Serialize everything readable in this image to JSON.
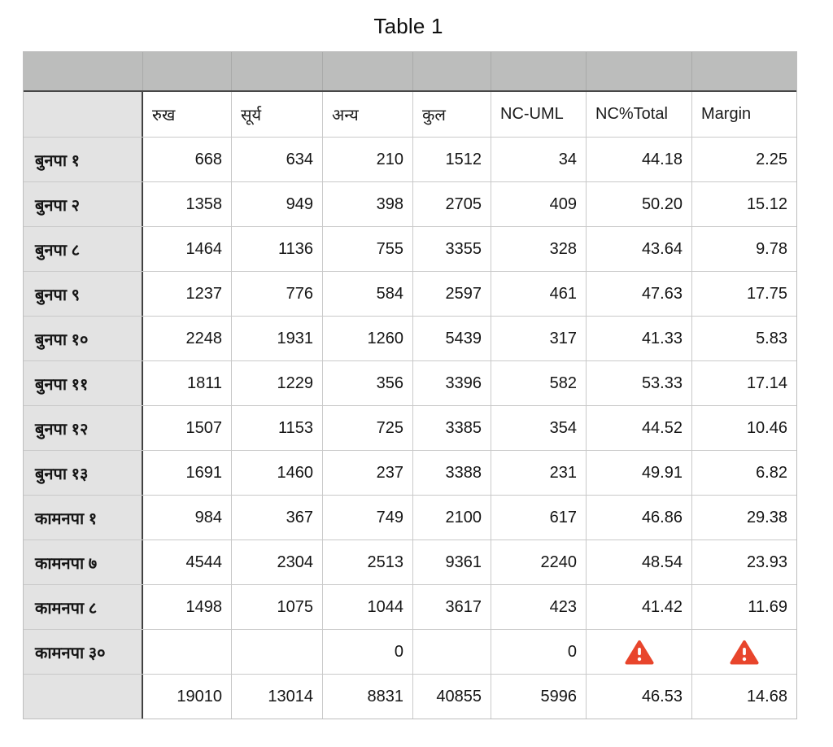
{
  "title": "Table 1",
  "colors": {
    "band_background": "#bcbdbc",
    "label_column_background": "#e3e3e3",
    "grid_border": "#c9c9c9",
    "dark_border": "#474747",
    "warning_red": "#e8452c",
    "text": "#151515"
  },
  "icons": {
    "warning": "warning-triangle-icon"
  },
  "table": {
    "column_headers": [
      "",
      "रुख",
      "सूर्य",
      "अन्य",
      "कुल",
      "NC-UML",
      "NC%Total",
      "Margin"
    ],
    "rows": [
      {
        "label": "बुनपा १",
        "values": [
          "668",
          "634",
          "210",
          "1512",
          "34",
          "44.18",
          "2.25"
        ]
      },
      {
        "label": "बुनपा २",
        "values": [
          "1358",
          "949",
          "398",
          "2705",
          "409",
          "50.20",
          "15.12"
        ]
      },
      {
        "label": "बुनपा ८",
        "values": [
          "1464",
          "1136",
          "755",
          "3355",
          "328",
          "43.64",
          "9.78"
        ]
      },
      {
        "label": "बुनपा ९",
        "values": [
          "1237",
          "776",
          "584",
          "2597",
          "461",
          "47.63",
          "17.75"
        ]
      },
      {
        "label": "बुनपा १०",
        "values": [
          "2248",
          "1931",
          "1260",
          "5439",
          "317",
          "41.33",
          "5.83"
        ]
      },
      {
        "label": "बुनपा ११",
        "values": [
          "1811",
          "1229",
          "356",
          "3396",
          "582",
          "53.33",
          "17.14"
        ]
      },
      {
        "label": "बुनपा १२",
        "values": [
          "1507",
          "1153",
          "725",
          "3385",
          "354",
          "44.52",
          "10.46"
        ]
      },
      {
        "label": "बुनपा १३",
        "values": [
          "1691",
          "1460",
          "237",
          "3388",
          "231",
          "49.91",
          "6.82"
        ]
      },
      {
        "label": "कामनपा १",
        "values": [
          "984",
          "367",
          "749",
          "2100",
          "617",
          "46.86",
          "29.38"
        ]
      },
      {
        "label": "कामनपा ७",
        "values": [
          "4544",
          "2304",
          "2513",
          "9361",
          "2240",
          "48.54",
          "23.93"
        ]
      },
      {
        "label": "कामनपा ८",
        "values": [
          "1498",
          "1075",
          "1044",
          "3617",
          "423",
          "41.42",
          "11.69"
        ]
      },
      {
        "label": "कामनपा ३०",
        "values": [
          "",
          "",
          "0",
          "",
          "0",
          "warning",
          "warning"
        ]
      }
    ],
    "totals_row": {
      "label": "",
      "values": [
        "19010",
        "13014",
        "8831",
        "40855",
        "5996",
        "46.53",
        "14.68"
      ]
    }
  },
  "chart_data": {
    "type": "table",
    "title": "Table 1",
    "columns": [
      "रुख",
      "सूर्य",
      "अन्य",
      "कुल",
      "NC-UML",
      "NC%Total",
      "Margin"
    ],
    "row_labels": [
      "बुनपा १",
      "बुनपा २",
      "बुनपा ८",
      "बुनपा ९",
      "बुनपा १०",
      "बुनपा ११",
      "बुनपा १२",
      "बुनपा १३",
      "कामनपा १",
      "कामनपा ७",
      "कामनपा ८",
      "कामनपा ३०"
    ],
    "cells": [
      [
        668,
        634,
        210,
        1512,
        34,
        44.18,
        2.25
      ],
      [
        1358,
        949,
        398,
        2705,
        409,
        50.2,
        15.12
      ],
      [
        1464,
        1136,
        755,
        3355,
        328,
        43.64,
        9.78
      ],
      [
        1237,
        776,
        584,
        2597,
        461,
        47.63,
        17.75
      ],
      [
        2248,
        1931,
        1260,
        5439,
        317,
        41.33,
        5.83
      ],
      [
        1811,
        1229,
        356,
        3396,
        582,
        53.33,
        17.14
      ],
      [
        1507,
        1153,
        725,
        3385,
        354,
        44.52,
        10.46
      ],
      [
        1691,
        1460,
        237,
        3388,
        231,
        49.91,
        6.82
      ],
      [
        984,
        367,
        749,
        2100,
        617,
        46.86,
        29.38
      ],
      [
        4544,
        2304,
        2513,
        9361,
        2240,
        48.54,
        23.93
      ],
      [
        1498,
        1075,
        1044,
        3617,
        423,
        41.42,
        11.69
      ],
      [
        null,
        null,
        0,
        null,
        0,
        "error",
        "error"
      ]
    ],
    "totals": [
      19010,
      13014,
      8831,
      40855,
      5996,
      46.53,
      14.68
    ],
    "error_cells": [
      [
        "कामनपा ३०",
        "NC%Total"
      ],
      [
        "कामनपा ३०",
        "Margin"
      ]
    ]
  }
}
